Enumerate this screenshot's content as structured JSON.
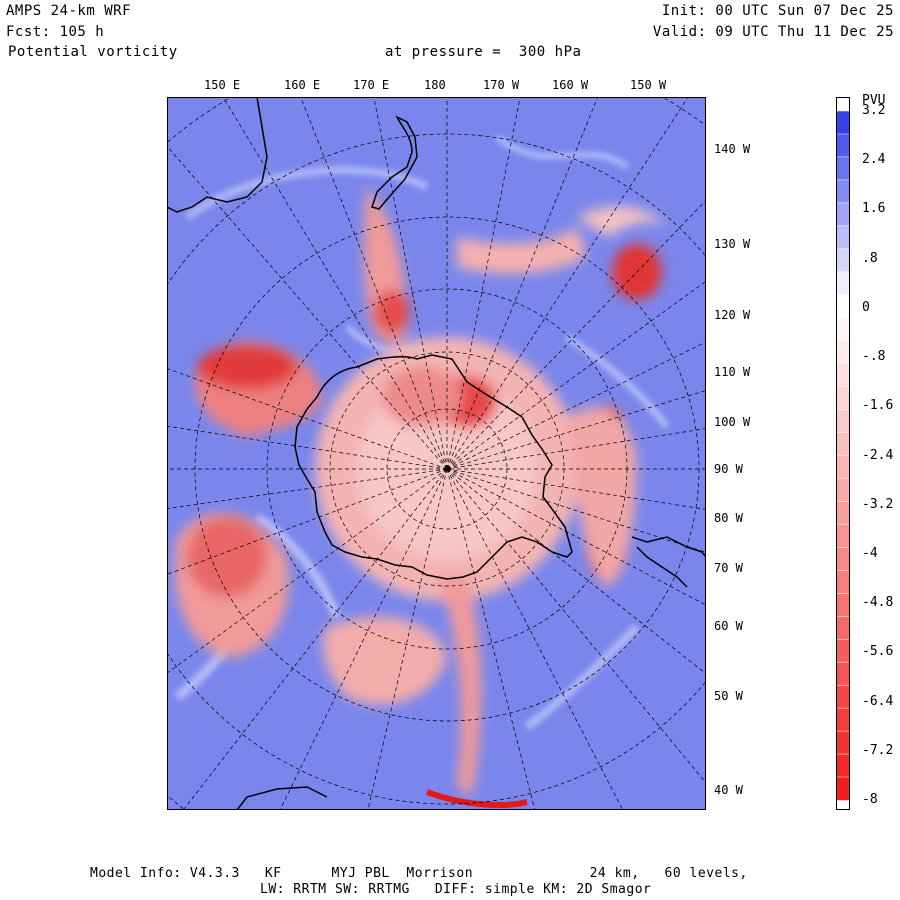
{
  "header": {
    "model": "AMPS 24-km WRF",
    "forecast": "Fcst: 105 h",
    "variable": "Potential vorticity",
    "level": "at pressure =  300 hPa",
    "init": "Init: 00 UTC Sun 07 Dec 25",
    "valid": "Valid: 09 UTC Thu 11 Dec 25"
  },
  "longitude_labels_top": [
    "150 E",
    "160 E",
    "170 E",
    "180",
    "170 W",
    "160 W",
    "150 W"
  ],
  "longitude_labels_right": [
    "140 W",
    "130 W",
    "120 W",
    "110 W",
    "100 W",
    "90 W",
    "80 W",
    "70 W",
    "60 W",
    "50 W",
    "40 W"
  ],
  "colorbar": {
    "unit": "PVU",
    "labels": [
      "3.2",
      "2.4",
      "1.6",
      ".8",
      "0",
      "-.8",
      "-1.6",
      "-2.4",
      "-3.2",
      "-4",
      "-4.8",
      "-5.6",
      "-6.4",
      "-7.2",
      "-8"
    ],
    "values": [
      3.2,
      2.4,
      1.6,
      0.8,
      0,
      -0.8,
      -1.6,
      -2.4,
      -3.2,
      -4,
      -4.8,
      -5.6,
      -6.4,
      -7.2,
      -8
    ],
    "color_positive": "#2a35e6",
    "color_zero": "#ffffff",
    "color_negative": "#ee1a1a"
  },
  "footer": {
    "line1": "Model Info: V4.3.3   KF      MYJ PBL  Morrison              24 km,   60 levels,",
    "line2": "LW: RRTM SW: RRTMG   DIFF: simple KM: 2D Smagor"
  }
}
